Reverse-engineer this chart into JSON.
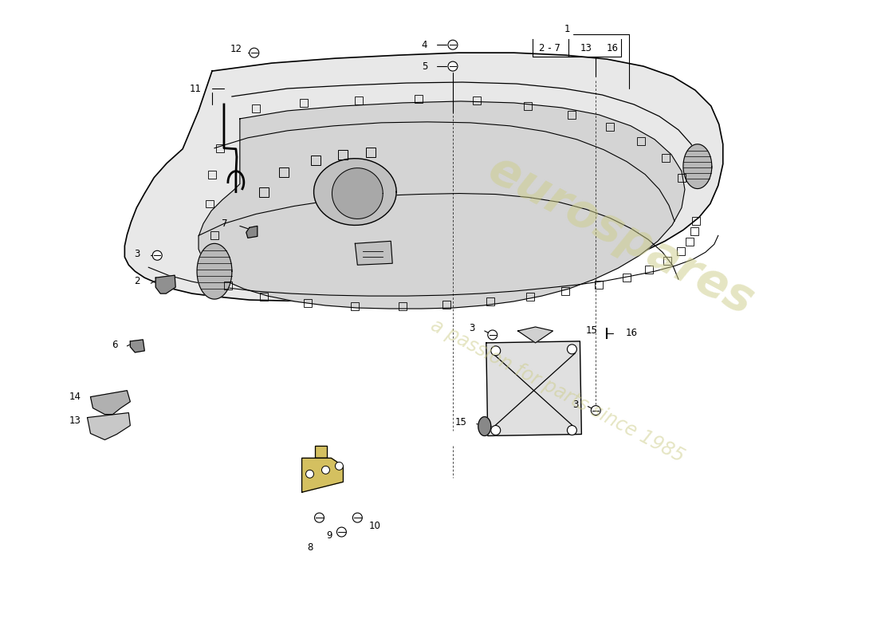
{
  "bg_color": "#ffffff",
  "watermark_color1": "#cccc88",
  "watermark_color2": "#cccc88",
  "panel_fill": "#e8e8e8",
  "panel_inner_fill": "#d4d4d4",
  "panel_shadow": "#c8c8c8",
  "label_fs": 8.5,
  "lw_panel": 1.2,
  "lw_inner": 0.9,
  "lw_leader": 0.8
}
